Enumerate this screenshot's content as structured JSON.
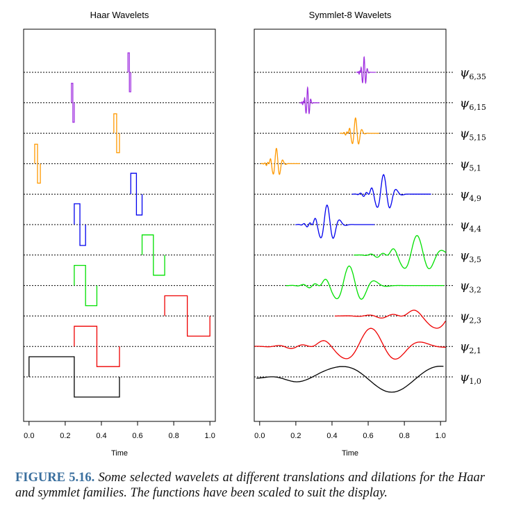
{
  "chart_data": [
    {
      "type": "line",
      "title": "Haar Wavelets",
      "xlabel": "Time",
      "ylabel": "",
      "xlim": [
        -0.03,
        1.03
      ],
      "x_ticks": [
        "0.0",
        "0.2",
        "0.4",
        "0.6",
        "0.8",
        "1.0"
      ],
      "y_axis": "none",
      "grid": "dotted baseline per wavelet",
      "series": [
        {
          "label": "ψ6,35",
          "color": "#a030e0",
          "level": 6,
          "translation": 35
        },
        {
          "label": "ψ6,15",
          "color": "#a030e0",
          "level": 6,
          "translation": 15
        },
        {
          "label": "ψ5,15",
          "color": "#ff9900",
          "level": 5,
          "translation": 15
        },
        {
          "label": "ψ5,1",
          "color": "#ff9900",
          "level": 5,
          "translation": 1
        },
        {
          "label": "ψ4,9",
          "color": "#0000ee",
          "level": 4,
          "translation": 9
        },
        {
          "label": "ψ4,4",
          "color": "#0000ee",
          "level": 4,
          "translation": 4
        },
        {
          "label": "ψ3,5",
          "color": "#00e000",
          "level": 3,
          "translation": 5
        },
        {
          "label": "ψ3,2",
          "color": "#00e000",
          "level": 3,
          "translation": 2
        },
        {
          "label": "ψ2,3",
          "color": "#ee0000",
          "level": 2,
          "translation": 3
        },
        {
          "label": "ψ2,1",
          "color": "#ee0000",
          "level": 2,
          "translation": 1
        },
        {
          "label": "ψ1,0",
          "color": "#000000",
          "level": 1,
          "translation": 0
        }
      ]
    },
    {
      "type": "line",
      "title": "Symmlet-8 Wavelets",
      "xlabel": "Time",
      "ylabel": "",
      "xlim": [
        -0.03,
        1.03
      ],
      "x_ticks": [
        "0.0",
        "0.2",
        "0.4",
        "0.6",
        "0.8",
        "1.0"
      ],
      "y_axis": "none",
      "grid": "dotted baseline per wavelet",
      "series": [
        {
          "label": "ψ6,35",
          "color": "#a030e0",
          "level": 6,
          "translation": 35
        },
        {
          "label": "ψ6,15",
          "color": "#a030e0",
          "level": 6,
          "translation": 15
        },
        {
          "label": "ψ5,15",
          "color": "#ff9900",
          "level": 5,
          "translation": 15
        },
        {
          "label": "ψ5,1",
          "color": "#ff9900",
          "level": 5,
          "translation": 1
        },
        {
          "label": "ψ4,9",
          "color": "#0000ee",
          "level": 4,
          "translation": 9
        },
        {
          "label": "ψ4,4",
          "color": "#0000ee",
          "level": 4,
          "translation": 4
        },
        {
          "label": "ψ3,5",
          "color": "#00e000",
          "level": 3,
          "translation": 5
        },
        {
          "label": "ψ3,2",
          "color": "#00e000",
          "level": 3,
          "translation": 2
        },
        {
          "label": "ψ2,3",
          "color": "#ee0000",
          "level": 2,
          "translation": 3
        },
        {
          "label": "ψ2,1",
          "color": "#ee0000",
          "level": 2,
          "translation": 1
        },
        {
          "label": "ψ1,0",
          "color": "#000000",
          "level": 1,
          "translation": 0
        }
      ]
    }
  ],
  "row_labels": [
    {
      "base": "ψ",
      "sub": "6,35"
    },
    {
      "base": "ψ",
      "sub": "6,15"
    },
    {
      "base": "ψ",
      "sub": "5,15"
    },
    {
      "base": "ψ",
      "sub": "5,1"
    },
    {
      "base": "ψ",
      "sub": "4,9"
    },
    {
      "base": "ψ",
      "sub": "4,4"
    },
    {
      "base": "ψ",
      "sub": "3,5"
    },
    {
      "base": "ψ",
      "sub": "3,2"
    },
    {
      "base": "ψ",
      "sub": "2,3"
    },
    {
      "base": "ψ",
      "sub": "2,1"
    },
    {
      "base": "ψ",
      "sub": "1,0"
    }
  ],
  "caption": {
    "label": "FIGURE 5.16.",
    "text": "Some selected wavelets at different translations and dilations for the Haar and symmlet families. The functions have been scaled to suit the display."
  }
}
